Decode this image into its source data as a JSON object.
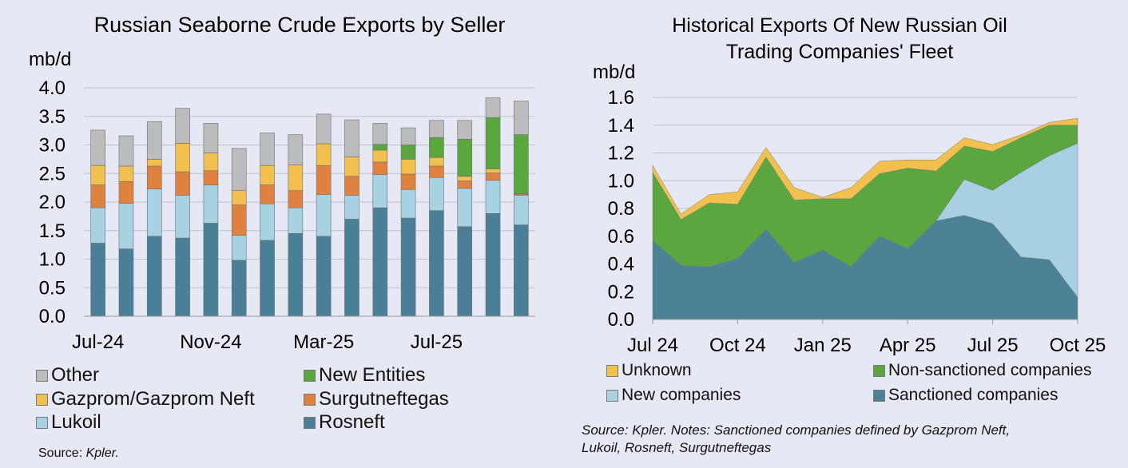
{
  "chart_data": [
    {
      "type": "bar",
      "stacked": true,
      "title": "Russian Seaborne Crude Exports by Seller",
      "ylabel": "mb/d",
      "ylim": [
        0,
        4.0
      ],
      "yticks": [
        "0.0",
        "0.5",
        "1.0",
        "1.5",
        "2.0",
        "2.5",
        "3.0",
        "3.5",
        "4.0"
      ],
      "xtick_labels": [
        "Jul-24",
        "Nov-24",
        "Mar-25",
        "Jul-25"
      ],
      "categories": [
        "Jul-24",
        "Aug-24",
        "Sep-24",
        "Oct-24",
        "Nov-24",
        "Dec-24",
        "Jan-25",
        "Feb-25",
        "Mar-25",
        "Apr-25",
        "May-25",
        "Jun-25",
        "Jul-25",
        "Aug-25",
        "Sep-25",
        "Oct-25"
      ],
      "series": [
        {
          "name": "Rosneft",
          "color": "#4a8097",
          "values": [
            1.28,
            1.18,
            1.4,
            1.37,
            1.63,
            0.98,
            1.33,
            1.45,
            1.4,
            1.7,
            1.9,
            1.72,
            1.85,
            1.57,
            1.8,
            1.6
          ]
        },
        {
          "name": "Lukoil",
          "color": "#a6d2e2",
          "values": [
            0.62,
            0.8,
            0.83,
            0.75,
            0.67,
            0.44,
            0.64,
            0.45,
            0.73,
            0.42,
            0.58,
            0.5,
            0.58,
            0.67,
            0.58,
            0.52
          ]
        },
        {
          "name": "Surgutneftegas",
          "color": "#e0823f",
          "values": [
            0.4,
            0.38,
            0.4,
            0.41,
            0.25,
            0.53,
            0.33,
            0.3,
            0.51,
            0.33,
            0.22,
            0.27,
            0.2,
            0.13,
            0.13,
            0.02
          ]
        },
        {
          "name": "Gazprom/Gazprom Neft",
          "color": "#f2c04e",
          "values": [
            0.34,
            0.27,
            0.12,
            0.5,
            0.31,
            0.25,
            0.34,
            0.45,
            0.38,
            0.34,
            0.21,
            0.26,
            0.15,
            0.08,
            0.07,
            0.01
          ]
        },
        {
          "name": "New Entities",
          "color": "#5aa63f",
          "values": [
            0,
            0,
            0,
            0,
            0,
            0,
            0,
            0,
            0,
            0,
            0.1,
            0.25,
            0.35,
            0.65,
            0.9,
            1.03
          ]
        },
        {
          "name": "Other",
          "color": "#bcbcbc",
          "values": [
            0.62,
            0.53,
            0.66,
            0.61,
            0.52,
            0.74,
            0.57,
            0.53,
            0.52,
            0.65,
            0.37,
            0.3,
            0.3,
            0.33,
            0.35,
            0.59
          ]
        }
      ],
      "legend": [
        "Other",
        "New Entities",
        "Gazprom/Gazprom Neft",
        "Surgutneftegas",
        "Lukoil",
        "Rosneft"
      ],
      "source_label": "Source: ",
      "source_value": "Kpler."
    },
    {
      "type": "area",
      "stacked": true,
      "title_line1": "Historical Exports Of New Russian Oil",
      "title_line2": "Trading Companies' Fleet",
      "ylabel": "mb/d",
      "ylim": [
        0,
        1.6
      ],
      "yticks": [
        "0.0",
        "0.2",
        "0.4",
        "0.6",
        "0.8",
        "1.0",
        "1.2",
        "1.4",
        "1.6"
      ],
      "x": [
        0,
        1,
        2,
        3,
        4,
        5,
        6,
        7,
        8,
        9,
        10,
        11,
        12,
        13,
        14,
        15
      ],
      "xtick_labels": [
        {
          "x": 0,
          "label": "Jul 24"
        },
        {
          "x": 3,
          "label": "Oct 24"
        },
        {
          "x": 6,
          "label": "Jan 25"
        },
        {
          "x": 9,
          "label": "Apr 25"
        },
        {
          "x": 12,
          "label": "Jul 25"
        },
        {
          "x": 15,
          "label": "Oct 25"
        }
      ],
      "series": [
        {
          "name": "Sanctioned companies",
          "color": "#4b8296",
          "values": [
            0.57,
            0.39,
            0.38,
            0.44,
            0.65,
            0.41,
            0.5,
            0.38,
            0.6,
            0.51,
            0.71,
            0.75,
            0.69,
            0.45,
            0.43,
            0.16
          ]
        },
        {
          "name": "New companies",
          "color": "#a7d1e0",
          "values": [
            0,
            0,
            0,
            0,
            0,
            0,
            0,
            0,
            0,
            0,
            0,
            0.26,
            0.24,
            0.61,
            0.75,
            1.11
          ]
        },
        {
          "name": "Non-sanctioned companies",
          "color": "#5aa63f",
          "values": [
            0.49,
            0.33,
            0.46,
            0.39,
            0.52,
            0.45,
            0.37,
            0.49,
            0.45,
            0.58,
            0.36,
            0.24,
            0.28,
            0.25,
            0.22,
            0.13
          ]
        },
        {
          "name": "Unknown",
          "color": "#f2c04e",
          "values": [
            0.05,
            0.04,
            0.06,
            0.09,
            0.07,
            0.09,
            0.01,
            0.08,
            0.09,
            0.06,
            0.08,
            0.06,
            0.05,
            0.02,
            0.02,
            0.05
          ]
        }
      ],
      "legend": [
        "Unknown",
        "Non-sanctioned companies",
        "New companies",
        "Sanctioned companies"
      ],
      "source_note_line1": "Source: Kpler. Notes: Sanctioned companies defined by Gazprom Neft,",
      "source_note_line2": "Lukoil, Rosneft, Surgutneftegas"
    }
  ]
}
